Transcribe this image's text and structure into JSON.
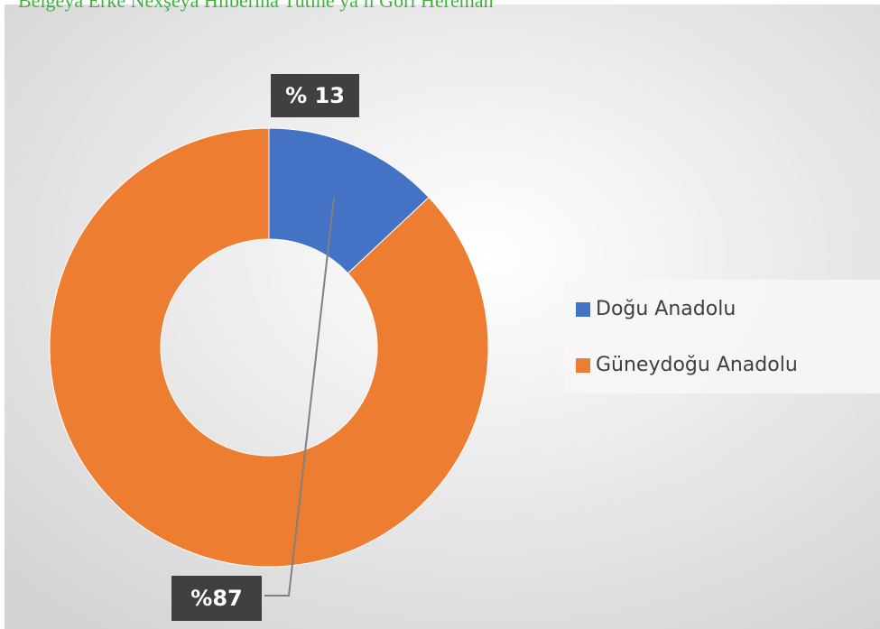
{
  "chart_data": {
    "type": "donut",
    "title": "Belgeya Erke Nexşeya Hilberina Tutine ya li Gori Hereman",
    "categories": [
      "Doğu Anadolu",
      "Güneydoğu Anadolu"
    ],
    "values": [
      13,
      87
    ],
    "value_labels": [
      "% 13",
      "%87"
    ],
    "colors": [
      "#4472c4",
      "#ed7d31"
    ],
    "legend": "right"
  }
}
